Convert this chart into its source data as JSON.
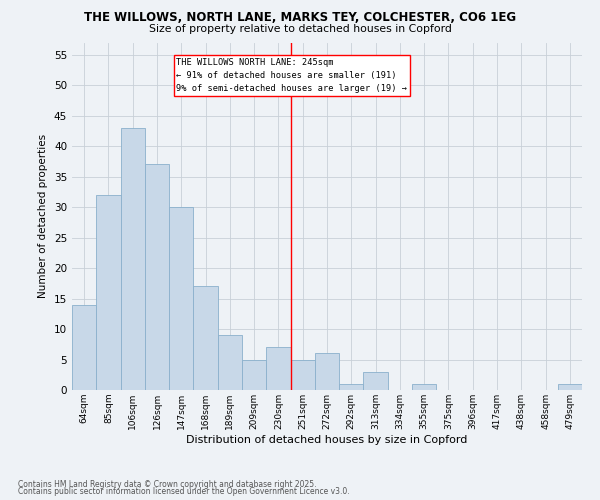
{
  "title1": "THE WILLOWS, NORTH LANE, MARKS TEY, COLCHESTER, CO6 1EG",
  "title2": "Size of property relative to detached houses in Copford",
  "xlabel": "Distribution of detached houses by size in Copford",
  "ylabel": "Number of detached properties",
  "categories": [
    "64sqm",
    "85sqm",
    "106sqm",
    "126sqm",
    "147sqm",
    "168sqm",
    "189sqm",
    "209sqm",
    "230sqm",
    "251sqm",
    "272sqm",
    "292sqm",
    "313sqm",
    "334sqm",
    "355sqm",
    "375sqm",
    "396sqm",
    "417sqm",
    "438sqm",
    "458sqm",
    "479sqm"
  ],
  "values": [
    14,
    32,
    43,
    37,
    30,
    17,
    9,
    5,
    7,
    5,
    6,
    1,
    3,
    0,
    1,
    0,
    0,
    0,
    0,
    0,
    1
  ],
  "bar_color": "#c8d8e8",
  "bar_edge_color": "#8ab0cc",
  "bar_width": 1.0,
  "marker_index": 8.5,
  "marker_label": "THE WILLOWS NORTH LANE: 245sqm",
  "marker_line1": "← 91% of detached houses are smaller (191)",
  "marker_line2": "9% of semi-detached houses are larger (19) →",
  "ylim": [
    0,
    57
  ],
  "yticks": [
    0,
    5,
    10,
    15,
    20,
    25,
    30,
    35,
    40,
    45,
    50,
    55
  ],
  "bg_color": "#eef2f6",
  "grid_color": "#c8d0d8",
  "footer1": "Contains HM Land Registry data © Crown copyright and database right 2025.",
  "footer2": "Contains public sector information licensed under the Open Government Licence v3.0."
}
